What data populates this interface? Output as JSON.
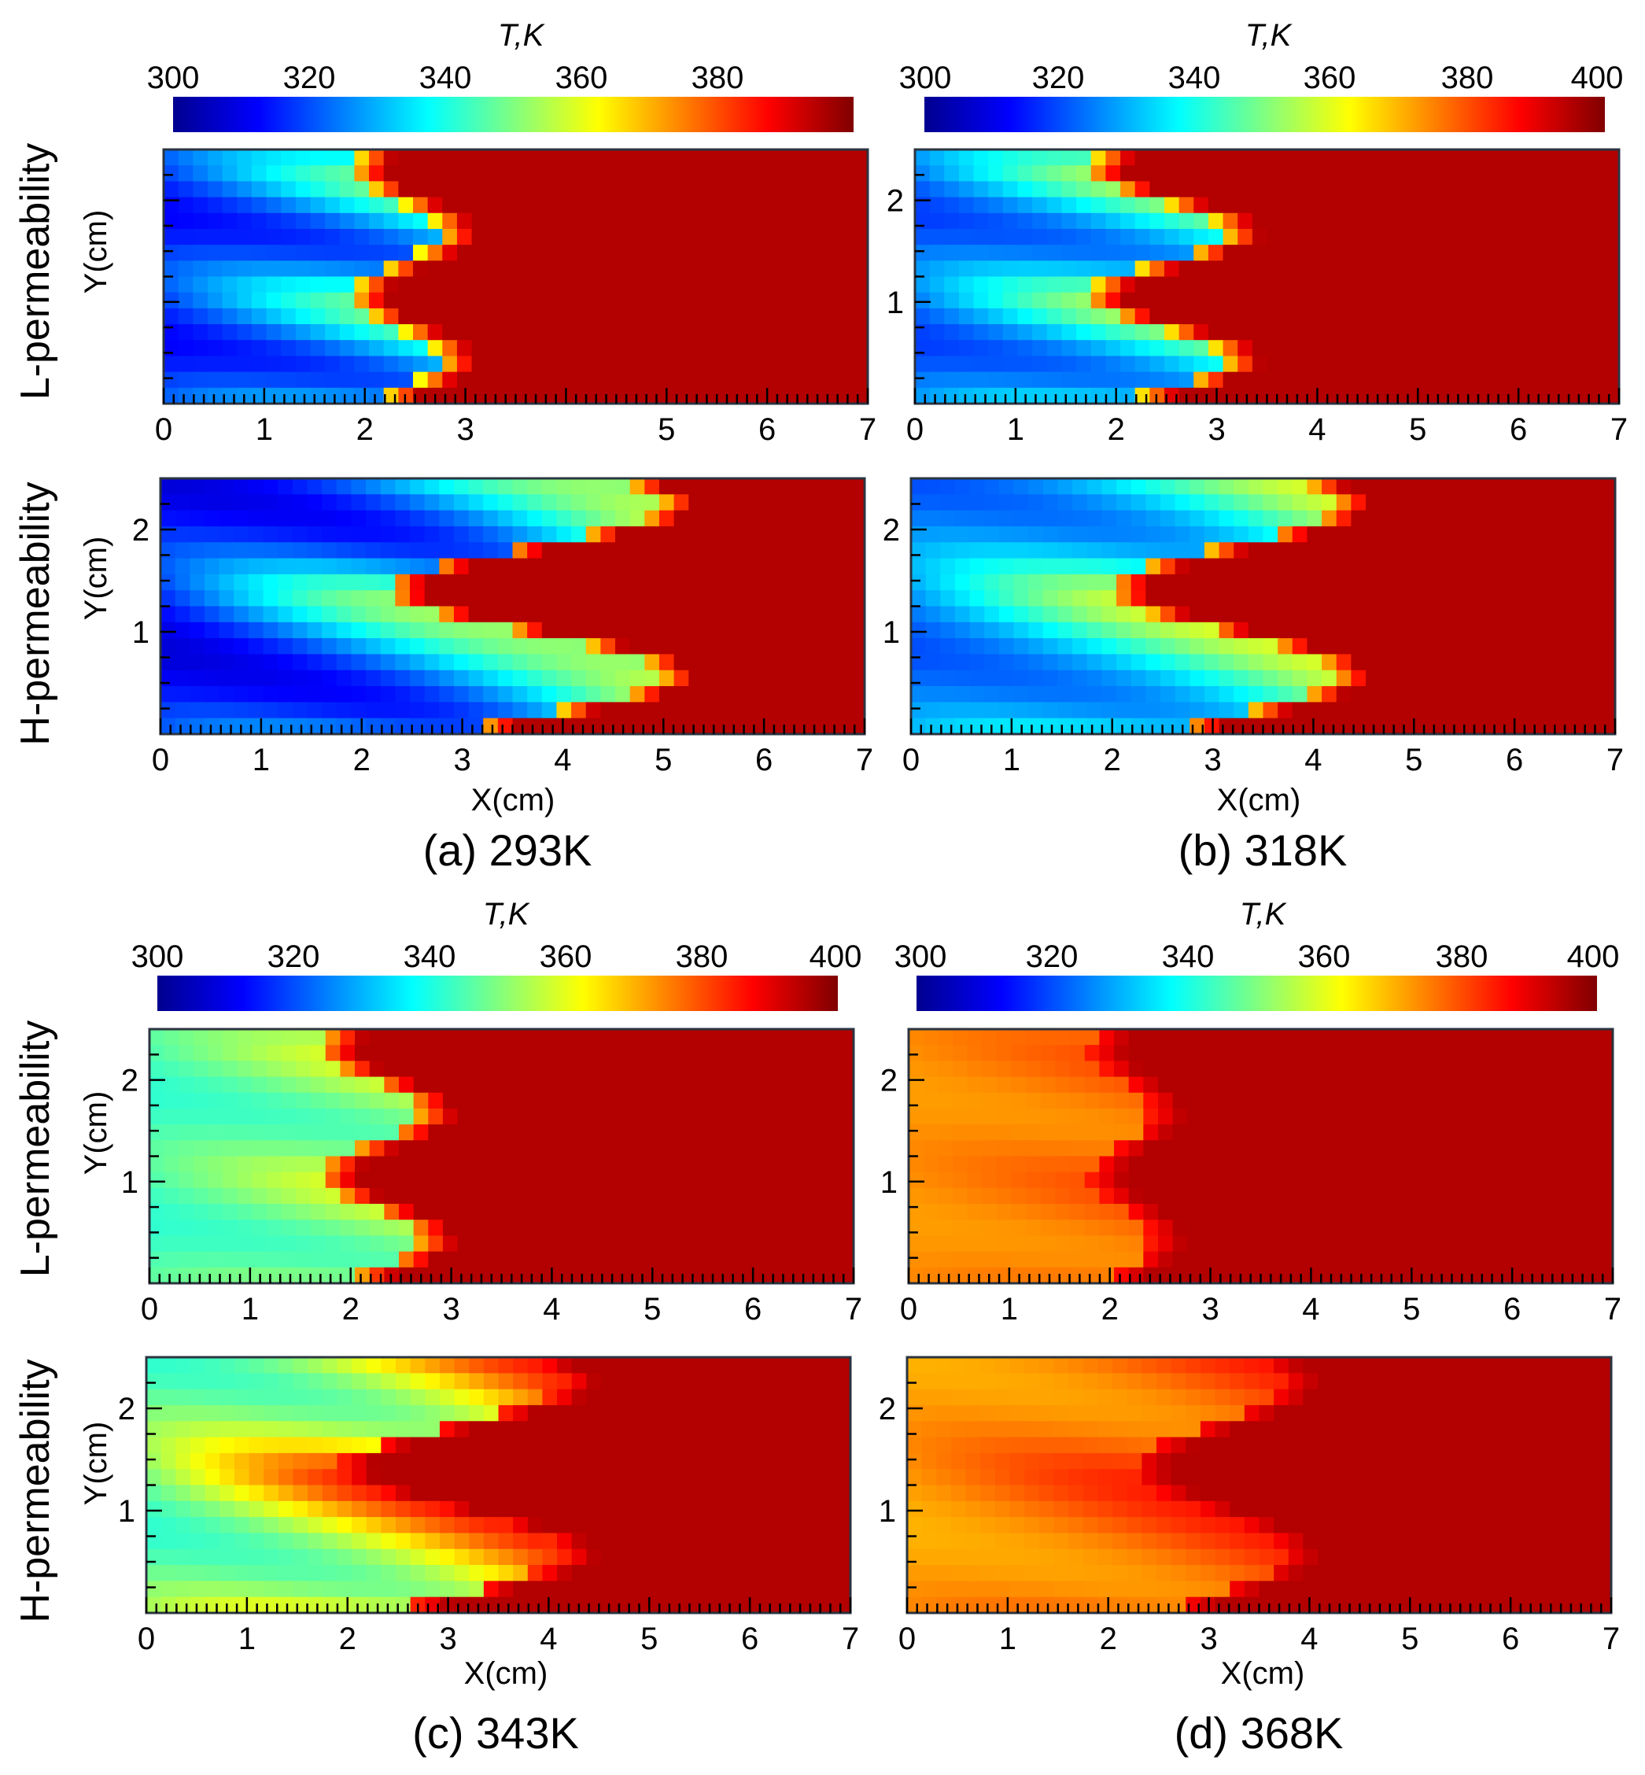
{
  "figure": {
    "panels": [
      {
        "caption": "(a) 293K",
        "colorbar_title": "T,K",
        "colorbar_ticks": [
          "300",
          "320",
          "340",
          "360",
          "380"
        ]
      },
      {
        "caption": "(b) 318K",
        "colorbar_title": "T,K",
        "colorbar_ticks": [
          "300",
          "320",
          "340",
          "360",
          "380",
          "400"
        ]
      },
      {
        "caption": "(c) 343K",
        "colorbar_title": "T,K",
        "colorbar_ticks": [
          "300",
          "320",
          "340",
          "360",
          "380",
          "400"
        ]
      },
      {
        "caption": "(d) 368K",
        "colorbar_title": "T,K",
        "colorbar_ticks": [
          "300",
          "320",
          "340",
          "360",
          "380",
          "400"
        ]
      }
    ],
    "row_labels": {
      "top": [
        "L-permeability",
        "H-permeability"
      ],
      "bottom": [
        "L-permeability",
        "H-permeability"
      ]
    },
    "y_label": "Y(cm)",
    "x_label": "X(cm)"
  },
  "chart_data": [
    {
      "type": "heatmap",
      "panel": "a",
      "case": "L-permeability",
      "inlet_temperature_K": 293,
      "xlim": [
        0,
        7
      ],
      "ylim": [
        0,
        2.5
      ],
      "x_ticks": [
        "0",
        "1",
        "2",
        "3",
        "5",
        "6",
        "7"
      ],
      "y_ticks": [],
      "colorscale_range_K": [
        300,
        400
      ],
      "colorscale": [
        "#00008f",
        "#0000ff",
        "#0080ff",
        "#00ffff",
        "#80ff80",
        "#ffff00",
        "#ff8000",
        "#ff0000",
        "#800000"
      ],
      "front": {
        "amp": 0.18,
        "waves": 2.0,
        "hot_T": 0.95,
        "cold_T": 0.12,
        "warm_T": 0.4,
        "x_front": 2.3
      }
    },
    {
      "type": "heatmap",
      "panel": "a",
      "case": "H-permeability",
      "inlet_temperature_K": 293,
      "xlim": [
        0,
        7
      ],
      "ylim": [
        0,
        2.5
      ],
      "x_ticks": [
        "0",
        "1",
        "2",
        "3",
        "4",
        "5",
        "6",
        "7"
      ],
      "y_ticks": [
        "1",
        "2"
      ],
      "colorscale_range_K": [
        300,
        400
      ],
      "front": {
        "amp": 0.55,
        "waves": 1.5,
        "hot_T": 0.95,
        "cold_T": 0.08,
        "warm_T": 0.45,
        "x_front": 3.6
      }
    },
    {
      "type": "heatmap",
      "panel": "b",
      "case": "L-permeability",
      "inlet_temperature_K": 318,
      "xlim": [
        0,
        7
      ],
      "ylim": [
        0,
        2.5
      ],
      "x_ticks": [
        "0",
        "1",
        "2",
        "3",
        "4",
        "5",
        "6",
        "7"
      ],
      "y_ticks": [
        "1",
        "2"
      ],
      "colorscale_range_K": [
        300,
        400
      ],
      "front": {
        "amp": 0.28,
        "waves": 2.0,
        "hot_T": 0.95,
        "cold_T": 0.18,
        "warm_T": 0.45,
        "x_front": 2.4
      }
    },
    {
      "type": "heatmap",
      "panel": "b",
      "case": "H-permeability",
      "inlet_temperature_K": 318,
      "xlim": [
        0,
        7
      ],
      "ylim": [
        0,
        2.5
      ],
      "x_ticks": [
        "0",
        "1",
        "2",
        "3",
        "4",
        "5",
        "6",
        "7"
      ],
      "y_ticks": [
        "1",
        "2"
      ],
      "colorscale_range_K": [
        300,
        400
      ],
      "front": {
        "amp": 0.45,
        "waves": 1.5,
        "hot_T": 0.95,
        "cold_T": 0.2,
        "warm_T": 0.5,
        "x_front": 3.1
      }
    },
    {
      "type": "heatmap",
      "panel": "c",
      "case": "L-permeability",
      "inlet_temperature_K": 343,
      "xlim": [
        0,
        7
      ],
      "ylim": [
        0,
        2.5
      ],
      "x_ticks": [
        "0",
        "1",
        "2",
        "3",
        "4",
        "5",
        "6",
        "7"
      ],
      "y_ticks": [
        "1",
        "2"
      ],
      "colorscale_range_K": [
        300,
        400
      ],
      "front": {
        "amp": 0.2,
        "waves": 2.0,
        "hot_T": 0.95,
        "cold_T": 0.42,
        "warm_T": 0.55,
        "x_front": 2.2
      }
    },
    {
      "type": "heatmap",
      "panel": "c",
      "case": "H-permeability",
      "inlet_temperature_K": 343,
      "xlim": [
        0,
        7
      ],
      "ylim": [
        0,
        2.5
      ],
      "x_ticks": [
        "0",
        "1",
        "2",
        "3",
        "4",
        "5",
        "6",
        "7"
      ],
      "y_ticks": [
        "1",
        "2"
      ],
      "colorscale_range_K": [
        300,
        400
      ],
      "front": {
        "amp": 0.45,
        "waves": 1.5,
        "hot_T": 0.95,
        "cold_T": 0.42,
        "warm_T": 0.75,
        "x_front": 3.0
      }
    },
    {
      "type": "heatmap",
      "panel": "d",
      "case": "L-permeability",
      "inlet_temperature_K": 368,
      "xlim": [
        0,
        7
      ],
      "ylim": [
        0,
        2.5
      ],
      "x_ticks": [
        "0",
        "1",
        "2",
        "3",
        "4",
        "5",
        "6",
        "7"
      ],
      "y_ticks": [
        "1",
        "2"
      ],
      "colorscale_range_K": [
        300,
        400
      ],
      "front": {
        "amp": 0.12,
        "waves": 2.0,
        "hot_T": 0.95,
        "cold_T": 0.72,
        "warm_T": 0.78,
        "x_front": 2.1
      }
    },
    {
      "type": "heatmap",
      "panel": "d",
      "case": "H-permeability",
      "inlet_temperature_K": 368,
      "xlim": [
        0,
        7
      ],
      "ylim": [
        0,
        2.5
      ],
      "x_ticks": [
        "0",
        "1",
        "2",
        "3",
        "4",
        "5",
        "6",
        "7"
      ],
      "y_ticks": [
        "1",
        "2"
      ],
      "colorscale_range_K": [
        300,
        400
      ],
      "front": {
        "amp": 0.3,
        "waves": 1.5,
        "hot_T": 0.95,
        "cold_T": 0.7,
        "warm_T": 0.82,
        "x_front": 3.0
      }
    }
  ]
}
